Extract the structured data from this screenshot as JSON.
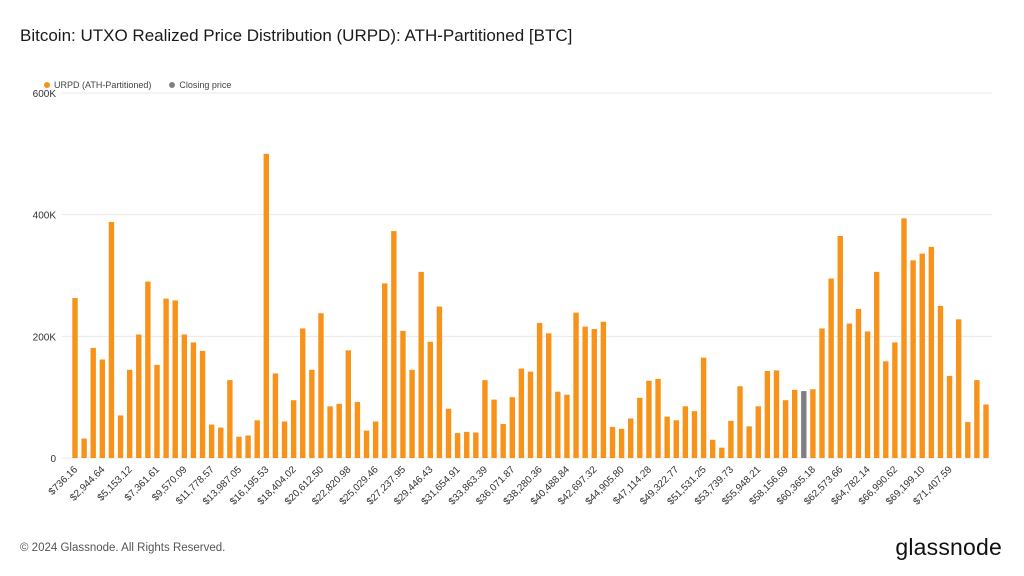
{
  "title": "Bitcoin: UTXO Realized Price Distribution (URPD): ATH-Partitioned [BTC]",
  "footer": {
    "copyright": "© 2024 Glassnode. All Rights Reserved.",
    "brand": "glassnode"
  },
  "colors": {
    "bar": "#F7931A",
    "highlight": "#808080",
    "grid": "#e8e8e8"
  },
  "chart_data": {
    "type": "bar",
    "title": "Bitcoin: UTXO Realized Price Distribution (URPD): ATH-Partitioned [BTC]",
    "ylim": [
      0,
      600000
    ],
    "yticks": [
      0,
      200000,
      400000,
      600000
    ],
    "ytick_labels": [
      "0",
      "200K",
      "400K",
      "600K"
    ],
    "legend_position": "top-left",
    "grid": true,
    "series": [
      {
        "name": "URPD (ATH-Partitioned)",
        "color": "#F7931A"
      },
      {
        "name": "Closing price",
        "color": "#808080"
      }
    ],
    "highlight_index": 80,
    "x_tick_labels": [
      "$736.16",
      "$2,944.64",
      "$5,153.12",
      "$7,361.61",
      "$9,570.09",
      "$11,778.57",
      "$13,987.05",
      "$16,195.53",
      "$18,404.02",
      "$20,612.50",
      "$22,820.98",
      "$25,029.46",
      "$27,237.95",
      "$29,446.43",
      "$31,654.91",
      "$33,863.39",
      "$36,071.87",
      "$38,280.36",
      "$40,488.84",
      "$42,697.32",
      "$44,905.80",
      "$47,114.28",
      "$49,322.77",
      "$51,531.25",
      "$53,739.73",
      "$55,948.21",
      "$58,156.69",
      "$60,365.18",
      "$62,573.66",
      "$64,782.14",
      "$66,990.62",
      "$69,199.10",
      "$71,407.59"
    ],
    "values": [
      263000,
      32000,
      181000,
      162000,
      388000,
      70000,
      145000,
      203000,
      290000,
      153000,
      262000,
      259000,
      203000,
      190000,
      176000,
      55000,
      50000,
      128000,
      35000,
      37000,
      62000,
      500000,
      139000,
      60000,
      95000,
      213000,
      145000,
      238000,
      85000,
      89000,
      177000,
      92000,
      45000,
      60000,
      287000,
      373000,
      209000,
      145000,
      306000,
      191000,
      249000,
      81000,
      41000,
      43000,
      42000,
      128000,
      96000,
      56000,
      100000,
      147000,
      142000,
      222000,
      205000,
      109000,
      104000,
      239000,
      216000,
      212000,
      224000,
      51000,
      48000,
      65000,
      99000,
      127000,
      130000,
      68000,
      62000,
      85000,
      77000,
      165000,
      30000,
      17000,
      61000,
      118000,
      52000,
      85000,
      143000,
      144000,
      95000,
      112000,
      110000,
      113000,
      213000,
      295000,
      365000,
      221000,
      245000,
      208000,
      306000,
      159000,
      190000,
      394000,
      325000,
      336000,
      347000,
      250000,
      135000,
      228000,
      59000,
      128000,
      88000
    ]
  }
}
